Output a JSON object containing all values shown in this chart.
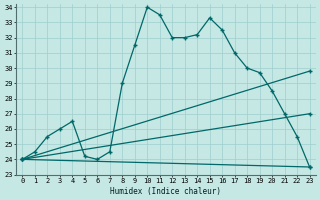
{
  "xlabel": "Humidex (Indice chaleur)",
  "xlim": [
    -0.5,
    23.5
  ],
  "ylim": [
    23,
    34.2
  ],
  "yticks": [
    23,
    24,
    25,
    26,
    27,
    28,
    29,
    30,
    31,
    32,
    33,
    34
  ],
  "xticks": [
    0,
    1,
    2,
    3,
    4,
    5,
    6,
    7,
    8,
    9,
    10,
    11,
    12,
    13,
    14,
    15,
    16,
    17,
    18,
    19,
    20,
    21,
    22,
    23
  ],
  "bg_color": "#c5e8e5",
  "grid_color": "#9ecece",
  "line_color": "#006868",
  "line1_x": [
    0,
    1,
    2,
    3,
    4,
    5,
    6,
    7,
    8,
    9,
    10,
    11,
    12,
    13,
    14,
    15,
    16,
    17,
    18,
    19,
    20,
    21,
    22,
    23
  ],
  "line1_y": [
    24.0,
    24.5,
    25.5,
    26.0,
    26.5,
    24.2,
    24.0,
    24.5,
    29.0,
    31.5,
    34.0,
    33.5,
    32.0,
    32.0,
    32.2,
    33.3,
    32.5,
    31.0,
    30.0,
    29.7,
    28.5,
    27.0,
    25.5,
    23.5
  ],
  "line2_x": [
    0,
    23
  ],
  "line2_y": [
    24.0,
    29.8
  ],
  "line3_x": [
    0,
    23
  ],
  "line3_y": [
    24.0,
    27.0
  ],
  "line4_x": [
    0,
    23
  ],
  "line4_y": [
    24.0,
    23.5
  ]
}
